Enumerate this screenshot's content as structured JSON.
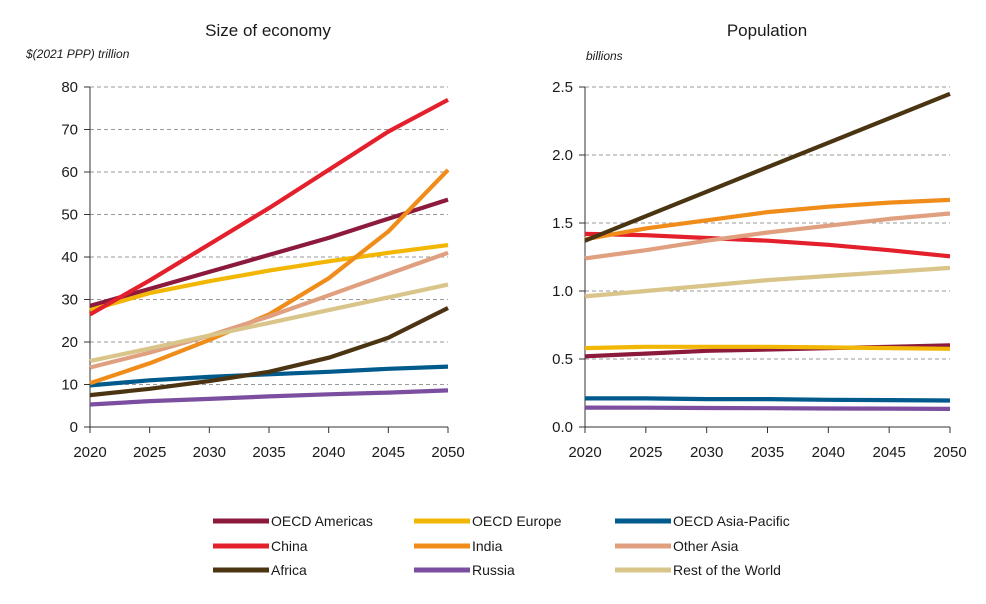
{
  "chart_data": [
    {
      "type": "line",
      "title": "Size of economy",
      "ylabel": "$(2021 PPP) trillion",
      "xlabel": "",
      "x": [
        2020,
        2025,
        2030,
        2035,
        2040,
        2045,
        2050
      ],
      "xlim": [
        2020,
        2050
      ],
      "ylim": [
        0,
        80
      ],
      "yticks": [
        0,
        10,
        20,
        30,
        40,
        50,
        60,
        70,
        80
      ],
      "ytick_labels": [
        "0",
        "10",
        "20",
        "30",
        "40",
        "50",
        "60",
        "70",
        "80"
      ],
      "xtick_labels": [
        "2020",
        "2025",
        "2030",
        "2035",
        "2040",
        "2045",
        "2050"
      ],
      "grid": "horizontal dashed",
      "series": [
        {
          "name": "OECD Americas",
          "color": "#8c1a3c",
          "values": [
            28.5,
            32.5,
            36.5,
            40.5,
            44.5,
            49,
            53.5
          ]
        },
        {
          "name": "OECD Europe",
          "color": "#f2b705",
          "values": [
            27.5,
            31.5,
            34.3,
            36.8,
            39,
            41,
            42.8
          ]
        },
        {
          "name": "OECD Asia-Pacific",
          "color": "#005a8c",
          "values": [
            9.8,
            11,
            11.8,
            12.4,
            13,
            13.7,
            14.2
          ]
        },
        {
          "name": "China",
          "color": "#e3202b",
          "values": [
            26.5,
            34.5,
            43,
            51.5,
            60.5,
            69.5,
            77
          ]
        },
        {
          "name": "India",
          "color": "#f08c1a",
          "values": [
            10.3,
            15,
            20.5,
            26.5,
            35,
            46,
            60.5
          ]
        },
        {
          "name": "Other Asia",
          "color": "#e0a080",
          "values": [
            14,
            17.5,
            21.5,
            26,
            31,
            36,
            41
          ]
        },
        {
          "name": "Africa",
          "color": "#4a3412",
          "values": [
            7.5,
            9,
            10.8,
            13,
            16.3,
            21,
            28
          ]
        },
        {
          "name": "Russia",
          "color": "#7b4ea0",
          "values": [
            5.3,
            6.1,
            6.6,
            7.2,
            7.7,
            8.1,
            8.6
          ]
        },
        {
          "name": "Rest of the World",
          "color": "#d9c48a",
          "values": [
            15.5,
            18.5,
            21.5,
            24.5,
            27.5,
            30.5,
            33.5
          ]
        }
      ]
    },
    {
      "type": "line",
      "title": "Population",
      "ylabel": "billions",
      "xlabel": "",
      "x": [
        2020,
        2025,
        2030,
        2035,
        2040,
        2045,
        2050
      ],
      "xlim": [
        2020,
        2050
      ],
      "ylim": [
        0,
        2.5
      ],
      "yticks": [
        0,
        0.5,
        1.0,
        1.5,
        2.0,
        2.5
      ],
      "ytick_labels": [
        "0.0",
        "0.5",
        "1.0",
        "1.5",
        "2.0",
        "2.5"
      ],
      "xtick_labels": [
        "2020",
        "2025",
        "2030",
        "2035",
        "2040",
        "2045",
        "2050"
      ],
      "grid": "horizontal dashed",
      "series": [
        {
          "name": "OECD Americas",
          "color": "#8c1a3c",
          "values": [
            0.52,
            0.54,
            0.56,
            0.57,
            0.58,
            0.59,
            0.6
          ]
        },
        {
          "name": "OECD Europe",
          "color": "#f2b705",
          "values": [
            0.58,
            0.59,
            0.59,
            0.59,
            0.585,
            0.58,
            0.575
          ]
        },
        {
          "name": "OECD Asia-Pacific",
          "color": "#005a8c",
          "values": [
            0.21,
            0.21,
            0.205,
            0.205,
            0.2,
            0.198,
            0.195
          ]
        },
        {
          "name": "China",
          "color": "#e3202b",
          "values": [
            1.42,
            1.41,
            1.39,
            1.37,
            1.34,
            1.3,
            1.255
          ]
        },
        {
          "name": "India",
          "color": "#f08c1a",
          "values": [
            1.38,
            1.46,
            1.52,
            1.58,
            1.62,
            1.65,
            1.67
          ]
        },
        {
          "name": "Other Asia",
          "color": "#e0a080",
          "values": [
            1.24,
            1.3,
            1.37,
            1.43,
            1.48,
            1.53,
            1.57
          ]
        },
        {
          "name": "Africa",
          "color": "#4a3412",
          "values": [
            1.37,
            1.55,
            1.73,
            1.91,
            2.09,
            2.27,
            2.45
          ]
        },
        {
          "name": "Russia",
          "color": "#7b4ea0",
          "values": [
            0.143,
            0.142,
            0.14,
            0.138,
            0.136,
            0.135,
            0.133
          ]
        },
        {
          "name": "Rest of the World",
          "color": "#d9c48a",
          "values": [
            0.96,
            1.0,
            1.04,
            1.08,
            1.11,
            1.14,
            1.17
          ]
        }
      ]
    }
  ],
  "legend": {
    "placement": "bottom",
    "items": [
      {
        "label": "OECD Americas",
        "color": "#8c1a3c"
      },
      {
        "label": "OECD Europe",
        "color": "#f2b705"
      },
      {
        "label": "OECD Asia-Pacific",
        "color": "#005a8c"
      },
      {
        "label": "China",
        "color": "#e3202b"
      },
      {
        "label": "India",
        "color": "#f08c1a"
      },
      {
        "label": "Other Asia",
        "color": "#e0a080"
      },
      {
        "label": "Africa",
        "color": "#4a3412"
      },
      {
        "label": "Russia",
        "color": "#7b4ea0"
      },
      {
        "label": "Rest of the World",
        "color": "#d9c48a"
      }
    ]
  }
}
